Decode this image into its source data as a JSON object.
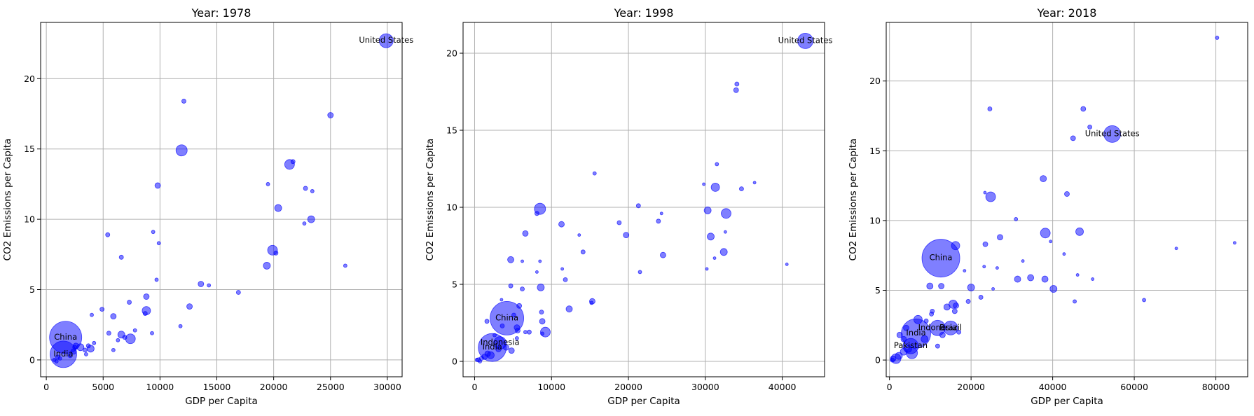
{
  "chart_data": [
    {
      "type": "scatter",
      "title": "Year: 1978",
      "xlabel": "GDP per Capita",
      "ylabel": "CO2 Emissions per Capita",
      "xlim": [
        -500,
        31300
      ],
      "ylim": [
        -1.2,
        24
      ],
      "xticks": [
        0,
        5000,
        10000,
        15000,
        20000,
        25000,
        30000
      ],
      "yticks": [
        0,
        5,
        10,
        15,
        20
      ],
      "grid": true,
      "point_color": "#0000ff",
      "points": [
        {
          "x": 29900,
          "y": 22.7,
          "s": 10,
          "label": "United States"
        },
        {
          "x": 1700,
          "y": 1.6,
          "s": 23,
          "label": "China"
        },
        {
          "x": 1500,
          "y": 0.4,
          "s": 19,
          "label": "India"
        },
        {
          "x": 12100,
          "y": 18.4,
          "s": 3
        },
        {
          "x": 25000,
          "y": 17.4,
          "s": 4
        },
        {
          "x": 11900,
          "y": 14.9,
          "s": 8
        },
        {
          "x": 21400,
          "y": 13.9,
          "s": 7
        },
        {
          "x": 21700,
          "y": 14.1,
          "s": 3
        },
        {
          "x": 9800,
          "y": 12.4,
          "s": 4
        },
        {
          "x": 19500,
          "y": 12.5,
          "s": 2.5
        },
        {
          "x": 22800,
          "y": 12.2,
          "s": 3
        },
        {
          "x": 23400,
          "y": 12.0,
          "s": 2.5
        },
        {
          "x": 20400,
          "y": 10.8,
          "s": 5
        },
        {
          "x": 23300,
          "y": 10.0,
          "s": 5
        },
        {
          "x": 22700,
          "y": 9.7,
          "s": 2.5
        },
        {
          "x": 5400,
          "y": 8.9,
          "s": 3
        },
        {
          "x": 9400,
          "y": 9.1,
          "s": 2.5
        },
        {
          "x": 9900,
          "y": 8.3,
          "s": 2.5
        },
        {
          "x": 19900,
          "y": 7.8,
          "s": 7
        },
        {
          "x": 20200,
          "y": 7.6,
          "s": 3
        },
        {
          "x": 6600,
          "y": 7.3,
          "s": 3
        },
        {
          "x": 26300,
          "y": 6.7,
          "s": 2.5
        },
        {
          "x": 19400,
          "y": 6.7,
          "s": 5
        },
        {
          "x": 9700,
          "y": 5.7,
          "s": 2.5
        },
        {
          "x": 13600,
          "y": 5.4,
          "s": 4
        },
        {
          "x": 14300,
          "y": 5.3,
          "s": 2.5
        },
        {
          "x": 16900,
          "y": 4.8,
          "s": 3
        },
        {
          "x": 8800,
          "y": 4.5,
          "s": 4
        },
        {
          "x": 7300,
          "y": 4.1,
          "s": 3
        },
        {
          "x": 12600,
          "y": 3.8,
          "s": 4
        },
        {
          "x": 4900,
          "y": 3.6,
          "s": 3
        },
        {
          "x": 8800,
          "y": 3.5,
          "s": 6
        },
        {
          "x": 4000,
          "y": 3.2,
          "s": 2.5
        },
        {
          "x": 5900,
          "y": 3.1,
          "s": 4
        },
        {
          "x": 8700,
          "y": 3.3,
          "s": 3
        },
        {
          "x": 11800,
          "y": 2.4,
          "s": 2.5
        },
        {
          "x": 7800,
          "y": 2.1,
          "s": 2.5
        },
        {
          "x": 5500,
          "y": 1.9,
          "s": 3
        },
        {
          "x": 9300,
          "y": 1.9,
          "s": 2.5
        },
        {
          "x": 6600,
          "y": 1.8,
          "s": 5
        },
        {
          "x": 6900,
          "y": 1.6,
          "s": 3
        },
        {
          "x": 7400,
          "y": 1.5,
          "s": 7
        },
        {
          "x": 6300,
          "y": 1.4,
          "s": 2.5
        },
        {
          "x": 4200,
          "y": 1.2,
          "s": 2.5
        },
        {
          "x": 2600,
          "y": 1.0,
          "s": 4
        },
        {
          "x": 3000,
          "y": 0.9,
          "s": 5
        },
        {
          "x": 3700,
          "y": 1.0,
          "s": 3
        },
        {
          "x": 3900,
          "y": 0.8,
          "s": 5
        },
        {
          "x": 3400,
          "y": 0.7,
          "s": 3
        },
        {
          "x": 2400,
          "y": 0.6,
          "s": 4
        },
        {
          "x": 5900,
          "y": 0.7,
          "s": 2.5
        },
        {
          "x": 3500,
          "y": 0.4,
          "s": 2.5
        },
        {
          "x": 2100,
          "y": 0.3,
          "s": 3
        },
        {
          "x": 1000,
          "y": 0.2,
          "s": 3
        },
        {
          "x": 1200,
          "y": 0.1,
          "s": 2.5
        },
        {
          "x": 700,
          "y": 0.0,
          "s": 2.5
        },
        {
          "x": 900,
          "y": -0.1,
          "s": 2.5
        },
        {
          "x": 2500,
          "y": 0.9,
          "s": 3
        }
      ]
    },
    {
      "type": "scatter",
      "title": "Year: 1998",
      "xlabel": "GDP per Capita",
      "ylabel": "CO2 Emissions per Capita",
      "xlim": [
        -1500,
        45500
      ],
      "ylim": [
        -1.0,
        22
      ],
      "xticks": [
        0,
        10000,
        20000,
        30000,
        40000
      ],
      "yticks": [
        0,
        5,
        10,
        15,
        20
      ],
      "grid": true,
      "point_color": "#0000ff",
      "points": [
        {
          "x": 43000,
          "y": 20.8,
          "s": 11,
          "label": "United States"
        },
        {
          "x": 4200,
          "y": 2.8,
          "s": 24,
          "label": "China"
        },
        {
          "x": 2300,
          "y": 0.9,
          "s": 20,
          "label": "India"
        },
        {
          "x": 3300,
          "y": 1.2,
          "s": 9,
          "label": "Indonesia"
        },
        {
          "x": 34100,
          "y": 18.0,
          "s": 3
        },
        {
          "x": 34000,
          "y": 17.6,
          "s": 3.5
        },
        {
          "x": 15600,
          "y": 12.2,
          "s": 2.5
        },
        {
          "x": 31500,
          "y": 12.8,
          "s": 2.5
        },
        {
          "x": 36400,
          "y": 11.6,
          "s": 2
        },
        {
          "x": 29800,
          "y": 11.5,
          "s": 2
        },
        {
          "x": 31300,
          "y": 11.3,
          "s": 6
        },
        {
          "x": 34700,
          "y": 11.2,
          "s": 3
        },
        {
          "x": 21300,
          "y": 10.1,
          "s": 3
        },
        {
          "x": 8500,
          "y": 9.9,
          "s": 8
        },
        {
          "x": 8100,
          "y": 9.6,
          "s": 3
        },
        {
          "x": 30300,
          "y": 9.8,
          "s": 5
        },
        {
          "x": 32700,
          "y": 9.6,
          "s": 7
        },
        {
          "x": 24300,
          "y": 9.6,
          "s": 2
        },
        {
          "x": 23900,
          "y": 9.1,
          "s": 3
        },
        {
          "x": 18800,
          "y": 9.0,
          "s": 3
        },
        {
          "x": 11300,
          "y": 8.9,
          "s": 4
        },
        {
          "x": 32600,
          "y": 8.4,
          "s": 2
        },
        {
          "x": 6600,
          "y": 8.3,
          "s": 4
        },
        {
          "x": 19700,
          "y": 8.2,
          "s": 4
        },
        {
          "x": 30700,
          "y": 8.1,
          "s": 5
        },
        {
          "x": 13600,
          "y": 8.2,
          "s": 2
        },
        {
          "x": 14100,
          "y": 7.1,
          "s": 3
        },
        {
          "x": 32400,
          "y": 7.1,
          "s": 5
        },
        {
          "x": 24500,
          "y": 6.9,
          "s": 4
        },
        {
          "x": 31200,
          "y": 6.7,
          "s": 2
        },
        {
          "x": 4700,
          "y": 6.6,
          "s": 4.5
        },
        {
          "x": 6200,
          "y": 6.5,
          "s": 2
        },
        {
          "x": 8500,
          "y": 6.5,
          "s": 2
        },
        {
          "x": 40600,
          "y": 6.3,
          "s": 2
        },
        {
          "x": 30200,
          "y": 6.0,
          "s": 2
        },
        {
          "x": 11400,
          "y": 6.0,
          "s": 2
        },
        {
          "x": 21500,
          "y": 5.8,
          "s": 2.5
        },
        {
          "x": 8100,
          "y": 5.8,
          "s": 2
        },
        {
          "x": 11800,
          "y": 5.3,
          "s": 3
        },
        {
          "x": 4700,
          "y": 4.9,
          "s": 3
        },
        {
          "x": 8600,
          "y": 4.8,
          "s": 5
        },
        {
          "x": 6200,
          "y": 4.7,
          "s": 3
        },
        {
          "x": 3500,
          "y": 4.0,
          "s": 2
        },
        {
          "x": 15300,
          "y": 3.9,
          "s": 4
        },
        {
          "x": 15200,
          "y": 3.8,
          "s": 2.5
        },
        {
          "x": 5800,
          "y": 3.6,
          "s": 3.5
        },
        {
          "x": 12300,
          "y": 3.4,
          "s": 4.5
        },
        {
          "x": 8700,
          "y": 3.2,
          "s": 3
        },
        {
          "x": 5100,
          "y": 3.0,
          "s": 3
        },
        {
          "x": 1600,
          "y": 2.6,
          "s": 3
        },
        {
          "x": 8800,
          "y": 2.6,
          "s": 4
        },
        {
          "x": 3600,
          "y": 2.3,
          "s": 3
        },
        {
          "x": 5500,
          "y": 2.2,
          "s": 4
        },
        {
          "x": 5600,
          "y": 2.0,
          "s": 3.5
        },
        {
          "x": 9200,
          "y": 1.9,
          "s": 7
        },
        {
          "x": 6600,
          "y": 1.9,
          "s": 2.5
        },
        {
          "x": 7100,
          "y": 1.9,
          "s": 3
        },
        {
          "x": 8800,
          "y": 1.8,
          "s": 2.5
        },
        {
          "x": 5500,
          "y": 1.5,
          "s": 2.5
        },
        {
          "x": 2600,
          "y": 1.7,
          "s": 2.5
        },
        {
          "x": 4100,
          "y": 0.9,
          "s": 4
        },
        {
          "x": 3100,
          "y": 0.8,
          "s": 4
        },
        {
          "x": 4800,
          "y": 0.7,
          "s": 4
        },
        {
          "x": 1700,
          "y": 0.5,
          "s": 4
        },
        {
          "x": 2100,
          "y": 0.4,
          "s": 5
        },
        {
          "x": 1300,
          "y": 0.3,
          "s": 4
        },
        {
          "x": 900,
          "y": 0.2,
          "s": 3
        },
        {
          "x": 500,
          "y": 0.1,
          "s": 3
        },
        {
          "x": 300,
          "y": 0.1,
          "s": 2.5
        },
        {
          "x": 700,
          "y": 0.0,
          "s": 2.5
        }
      ]
    },
    {
      "type": "scatter",
      "title": "Year: 2018",
      "xlabel": "GDP per Capita",
      "ylabel": "CO2 Emissions per Capita",
      "xlim": [
        -800,
        87800
      ],
      "ylim": [
        -1.2,
        24.2
      ],
      "xticks": [
        0,
        20000,
        40000,
        60000,
        80000
      ],
      "yticks": [
        0,
        5,
        10,
        15,
        20
      ],
      "grid": true,
      "point_color": "#0000ff",
      "points": [
        {
          "x": 54600,
          "y": 16.2,
          "s": 12,
          "label": "United States"
        },
        {
          "x": 12600,
          "y": 7.3,
          "s": 27,
          "label": "China"
        },
        {
          "x": 6500,
          "y": 1.9,
          "s": 21,
          "label": "India"
        },
        {
          "x": 11800,
          "y": 2.3,
          "s": 11,
          "label": "Indonesia"
        },
        {
          "x": 15000,
          "y": 2.3,
          "s": 10,
          "label": "Brazil"
        },
        {
          "x": 5200,
          "y": 1.0,
          "s": 11,
          "label": "Pakistan"
        },
        {
          "x": 80300,
          "y": 23.1,
          "s": 2.5
        },
        {
          "x": 24600,
          "y": 18.0,
          "s": 3
        },
        {
          "x": 47500,
          "y": 18.0,
          "s": 3.5
        },
        {
          "x": 49100,
          "y": 16.7,
          "s": 3
        },
        {
          "x": 45000,
          "y": 15.9,
          "s": 3.5
        },
        {
          "x": 37700,
          "y": 13.0,
          "s": 4.5
        },
        {
          "x": 23400,
          "y": 12.0,
          "s": 2
        },
        {
          "x": 43500,
          "y": 11.9,
          "s": 3.5
        },
        {
          "x": 24800,
          "y": 11.7,
          "s": 7
        },
        {
          "x": 31000,
          "y": 10.1,
          "s": 2.5
        },
        {
          "x": 38200,
          "y": 9.1,
          "s": 7
        },
        {
          "x": 46600,
          "y": 9.2,
          "s": 5.5
        },
        {
          "x": 27100,
          "y": 8.8,
          "s": 4
        },
        {
          "x": 84600,
          "y": 8.4,
          "s": 2
        },
        {
          "x": 39500,
          "y": 8.5,
          "s": 2
        },
        {
          "x": 16200,
          "y": 8.2,
          "s": 6
        },
        {
          "x": 23500,
          "y": 8.3,
          "s": 3.5
        },
        {
          "x": 70300,
          "y": 8.0,
          "s": 2
        },
        {
          "x": 42800,
          "y": 7.6,
          "s": 2
        },
        {
          "x": 32700,
          "y": 7.1,
          "s": 2
        },
        {
          "x": 23200,
          "y": 6.7,
          "s": 2
        },
        {
          "x": 26400,
          "y": 6.6,
          "s": 2
        },
        {
          "x": 18400,
          "y": 6.4,
          "s": 2
        },
        {
          "x": 46100,
          "y": 6.1,
          "s": 2
        },
        {
          "x": 31400,
          "y": 5.8,
          "s": 4.5
        },
        {
          "x": 34600,
          "y": 5.9,
          "s": 4.5
        },
        {
          "x": 38100,
          "y": 5.8,
          "s": 4.5
        },
        {
          "x": 49800,
          "y": 5.8,
          "s": 2
        },
        {
          "x": 9900,
          "y": 5.3,
          "s": 4.5
        },
        {
          "x": 12700,
          "y": 5.3,
          "s": 4
        },
        {
          "x": 20000,
          "y": 5.2,
          "s": 5
        },
        {
          "x": 40200,
          "y": 5.1,
          "s": 5
        },
        {
          "x": 25400,
          "y": 5.1,
          "s": 2
        },
        {
          "x": 22400,
          "y": 4.5,
          "s": 3
        },
        {
          "x": 62400,
          "y": 4.3,
          "s": 2.5
        },
        {
          "x": 45400,
          "y": 4.2,
          "s": 2.5
        },
        {
          "x": 19300,
          "y": 4.2,
          "s": 3
        },
        {
          "x": 15600,
          "y": 4.0,
          "s": 6
        },
        {
          "x": 16300,
          "y": 3.9,
          "s": 4
        },
        {
          "x": 14100,
          "y": 3.8,
          "s": 4.5
        },
        {
          "x": 10500,
          "y": 3.5,
          "s": 3
        },
        {
          "x": 10300,
          "y": 3.3,
          "s": 3
        },
        {
          "x": 16000,
          "y": 3.5,
          "s": 3.5
        },
        {
          "x": 7000,
          "y": 2.9,
          "s": 6
        },
        {
          "x": 9000,
          "y": 2.8,
          "s": 3
        },
        {
          "x": 4100,
          "y": 2.3,
          "s": 4
        },
        {
          "x": 17000,
          "y": 2.0,
          "s": 3
        },
        {
          "x": 2500,
          "y": 1.8,
          "s": 4
        },
        {
          "x": 13000,
          "y": 1.8,
          "s": 4
        },
        {
          "x": 3500,
          "y": 1.5,
          "s": 4
        },
        {
          "x": 8600,
          "y": 1.5,
          "s": 5
        },
        {
          "x": 11800,
          "y": 1.0,
          "s": 3
        },
        {
          "x": 4600,
          "y": 0.8,
          "s": 5
        },
        {
          "x": 3500,
          "y": 0.6,
          "s": 5
        },
        {
          "x": 5500,
          "y": 0.5,
          "s": 8
        },
        {
          "x": 2300,
          "y": 0.3,
          "s": 5
        },
        {
          "x": 1600,
          "y": 0.1,
          "s": 7
        },
        {
          "x": 900,
          "y": 0.1,
          "s": 4
        },
        {
          "x": 700,
          "y": 0.0,
          "s": 3
        }
      ]
    }
  ]
}
